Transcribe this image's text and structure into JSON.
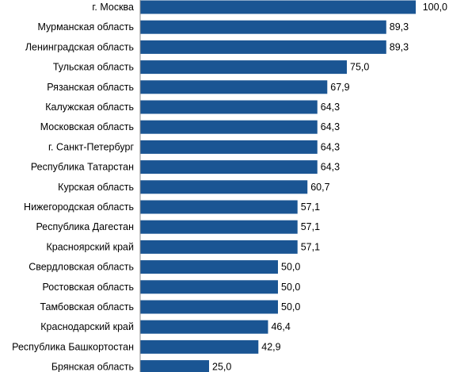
{
  "chart_data": {
    "type": "bar",
    "orientation": "horizontal",
    "categories": [
      "г. Москва",
      "Мурманская область",
      "Ленинградская область",
      "Тульская область",
      "Рязанская область",
      "Калужская область",
      "Московская область",
      "г. Санкт-Петербург",
      "Республика Татарстан",
      "Курская область",
      "Нижегородская область",
      "Республика Дагестан",
      "Красноярский край",
      "Свердловская область",
      "Ростовская область",
      "Тамбовская область",
      "Краснодарский край",
      "Республика Башкортостан",
      "Брянская область"
    ],
    "values": [
      100.0,
      89.3,
      89.3,
      75.0,
      67.9,
      64.3,
      64.3,
      64.3,
      64.3,
      60.7,
      57.1,
      57.1,
      57.1,
      50.0,
      50.0,
      50.0,
      46.4,
      42.9,
      25.0
    ],
    "value_labels": [
      "100,0",
      "89,3",
      "89,3",
      "75,0",
      "67,9",
      "64,3",
      "64,3",
      "64,3",
      "64,3",
      "60,7",
      "57,1",
      "57,1",
      "57,1",
      "50,0",
      "50,0",
      "50,0",
      "46,4",
      "42,9",
      "25,0"
    ],
    "xlim": [
      0,
      100
    ],
    "bar_color": "#1a5593",
    "grid": false,
    "legend": "none",
    "title": "",
    "xlabel": "",
    "ylabel": ""
  }
}
